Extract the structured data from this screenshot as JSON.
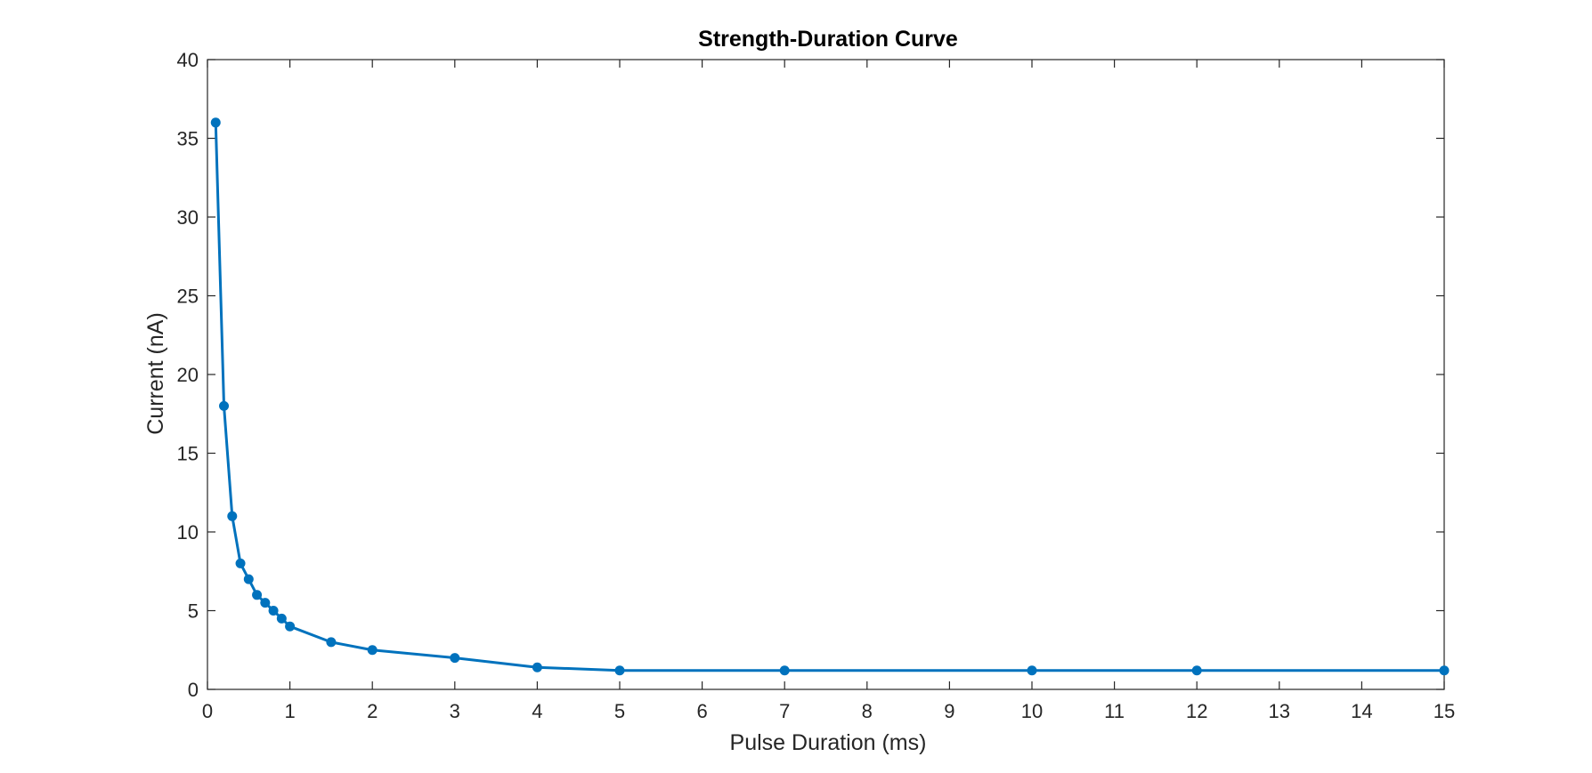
{
  "chart_data": {
    "type": "line",
    "title": "Strength-Duration Curve",
    "xlabel": "Pulse Duration (ms)",
    "ylabel": "Current (nA)",
    "xlim": [
      0,
      15
    ],
    "ylim": [
      0,
      40
    ],
    "xticks": [
      0,
      1,
      2,
      3,
      4,
      5,
      6,
      7,
      8,
      9,
      10,
      11,
      12,
      13,
      14,
      15
    ],
    "yticks": [
      0,
      5,
      10,
      15,
      20,
      25,
      30,
      35,
      40
    ],
    "grid": false,
    "legend": "none",
    "marker": "filled-circle",
    "color": "#0072BD",
    "series": [
      {
        "x": [
          0.1,
          0.2,
          0.3,
          0.4,
          0.5,
          0.6,
          0.7,
          0.8,
          0.9,
          1.0,
          1.5,
          2,
          3,
          4,
          5,
          7,
          10,
          12,
          15
        ],
        "y": [
          36,
          18,
          11,
          8,
          7,
          6,
          5.5,
          5,
          4.5,
          4,
          3,
          2.5,
          2,
          1.4,
          1.2,
          1.2,
          1.2,
          1.2,
          1.2
        ]
      }
    ]
  }
}
